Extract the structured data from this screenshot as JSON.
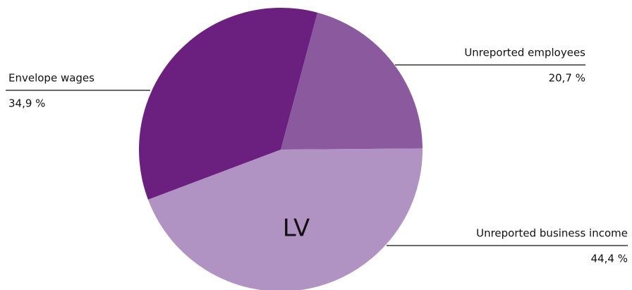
{
  "chart_data": {
    "type": "pie",
    "center_label": "LV",
    "categories": [
      "Unreported employees",
      "Unreported business income",
      "Envelope wages"
    ],
    "values": [
      20.7,
      44.4,
      34.9
    ],
    "value_labels": [
      "20,7 %",
      "44,4 %",
      "34,9 %"
    ],
    "colors": [
      "#8b5a9e",
      "#b092c3",
      "#6b1f7e"
    ]
  }
}
